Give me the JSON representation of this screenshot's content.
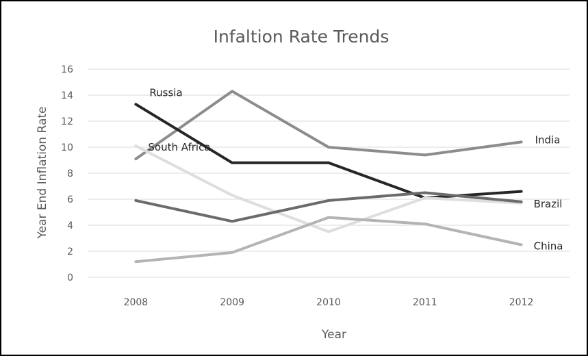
{
  "chart_data": {
    "type": "line",
    "title": "Infaltion Rate Trends",
    "xlabel": "Year",
    "ylabel": "Year End Inflation Rate",
    "x": [
      "2008",
      "2009",
      "2010",
      "2011",
      "2012"
    ],
    "ylim": [
      0,
      16
    ],
    "yticks": [
      "0",
      "2",
      "4",
      "6",
      "8",
      "10",
      "12",
      "14",
      "16"
    ],
    "grid": true,
    "legend": "none",
    "series": [
      {
        "name": "India",
        "values": [
          9.1,
          14.3,
          10.0,
          9.4,
          10.4
        ],
        "color": "#8c8c8c"
      },
      {
        "name": "Russia",
        "values": [
          13.3,
          8.8,
          8.8,
          6.1,
          6.6
        ],
        "color": "#262626"
      },
      {
        "name": "South Africa",
        "values": [
          10.1,
          6.3,
          3.5,
          6.1,
          5.7
        ],
        "color": "#dedede"
      },
      {
        "name": "Brazil",
        "values": [
          5.9,
          4.3,
          5.9,
          6.5,
          5.8
        ],
        "color": "#6b6b6b"
      },
      {
        "name": "China",
        "values": [
          1.2,
          1.9,
          4.6,
          4.1,
          2.5
        ],
        "color": "#b4b4b4"
      }
    ]
  }
}
